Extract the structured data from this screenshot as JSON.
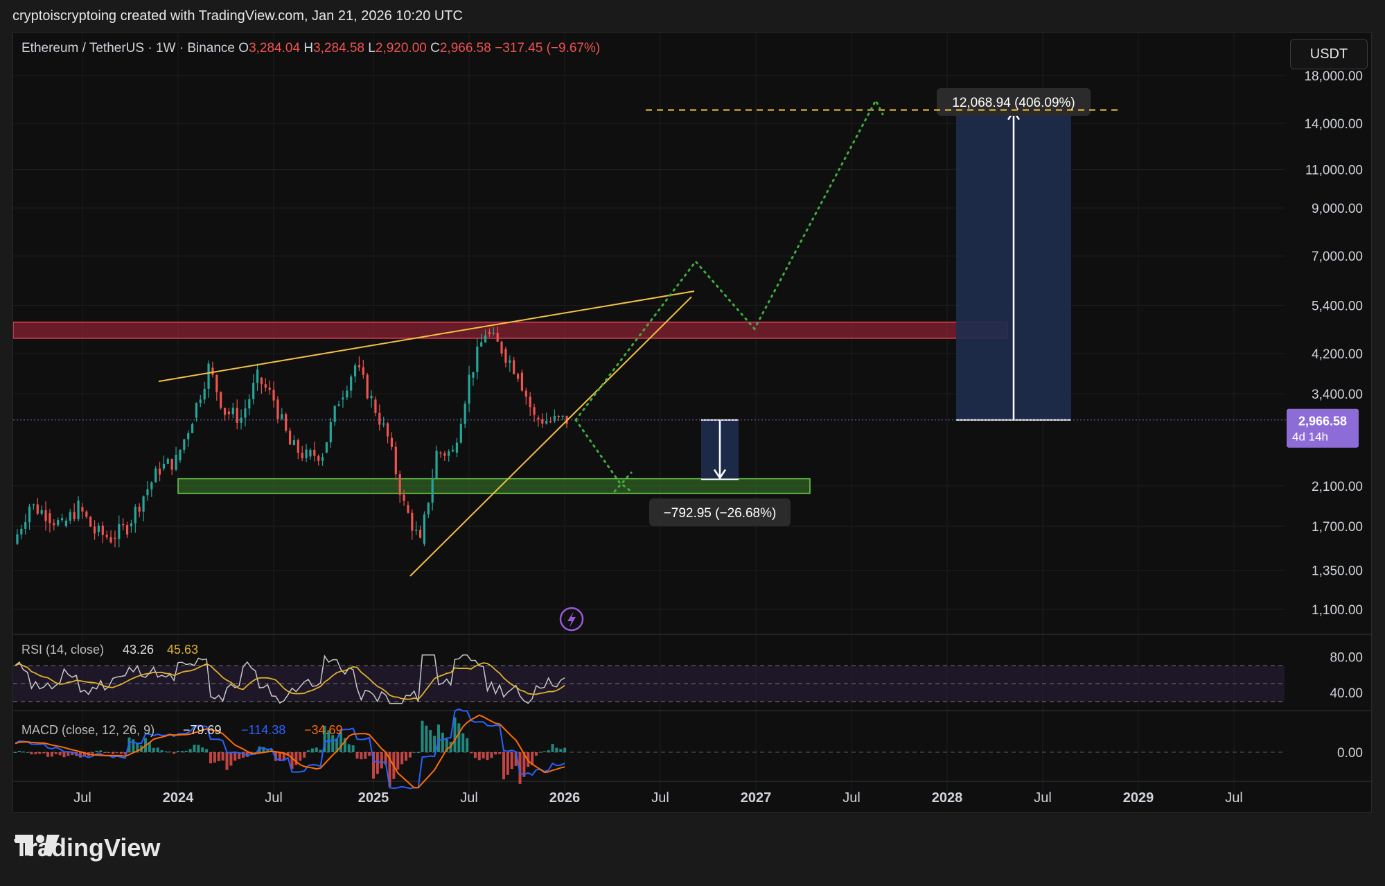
{
  "header": {
    "text": "cryptoiscryptoing created with TradingView.com, Jan 21, 2026 10:20 UTC"
  },
  "symbol_bar": {
    "title": "Ethereum / TetherUS · 1W · Binance",
    "o_label": "O",
    "o": "3,284.04",
    "h_label": "H",
    "h": "3,284.58",
    "l_label": "L",
    "l": "2,920.00",
    "c_label": "C",
    "c": "2,966.58",
    "change": "−317.45 (−9.67%)"
  },
  "currency_button": "USDT",
  "price_tag": {
    "price": "2,966.58",
    "countdown": "4d 14h"
  },
  "measure_up": {
    "label": "12,068.94 (406.09%)"
  },
  "measure_down": {
    "label": "−792.95 (−26.68%)"
  },
  "rsi": {
    "label": "RSI (14, close)",
    "v1": "43.26",
    "v2": "45.63"
  },
  "macd": {
    "label": "MACD (close, 12, 26, 9)",
    "v1": "−79.69",
    "v2": "−114.38",
    "v3": "−34.69"
  },
  "footer": {
    "brand": "TradingView"
  },
  "colors": {
    "up": "#26a69a",
    "down": "#ef5350",
    "orange": "#f5c242",
    "green_proj": "#4caf50",
    "resistance_zone": "#b2283c",
    "support_zone": "#3a7d2a",
    "measure_box": "#1e2d4f",
    "price_tag": "#8e6cd8",
    "rsi_line": "#c8c8c8",
    "rsi_ma": "#e0b12f",
    "macd_line": "#2962ff",
    "signal_line": "#ff6d00"
  },
  "chart_data": {
    "type": "candlestick",
    "scale": "log",
    "timeframe": "1W",
    "price_axis_ticks": [
      18000,
      14000,
      11000,
      9000,
      7000,
      5400,
      4200,
      3400,
      2100,
      1700,
      1350,
      1100
    ],
    "price_axis_labels": [
      "18,000.00",
      "14,000.00",
      "11,000.00",
      "9,000.00",
      "7,000.00",
      "5,400.00",
      "4,200.00",
      "3,400.00",
      "2,100.00",
      "1,700.00",
      "1,350.00",
      "1,100.00"
    ],
    "time_axis_labels": [
      "Jul",
      "2024",
      "Jul",
      "2025",
      "Jul",
      "2026",
      "Jul",
      "2027",
      "Jul",
      "2028",
      "Jul",
      "2029",
      "Jul"
    ],
    "price_path": [
      [
        "2023-03",
        1550
      ],
      [
        "2023-04",
        1900
      ],
      [
        "2023-05",
        1820
      ],
      [
        "2023-06",
        1700
      ],
      [
        "2023-07",
        1880
      ],
      [
        "2023-08",
        1650
      ],
      [
        "2023-09",
        1600
      ],
      [
        "2023-10",
        1700
      ],
      [
        "2023-11",
        2000
      ],
      [
        "2023-12",
        2300
      ],
      [
        "2024-01",
        2400
      ],
      [
        "2024-02",
        3000
      ],
      [
        "2024-03",
        3900
      ],
      [
        "2024-04",
        3100
      ],
      [
        "2024-05",
        3000
      ],
      [
        "2024-06",
        3700
      ],
      [
        "2024-07",
        3300
      ],
      [
        "2024-08",
        2600
      ],
      [
        "2024-09",
        2450
      ],
      [
        "2024-10",
        2500
      ],
      [
        "2024-11",
        3300
      ],
      [
        "2024-12",
        3950
      ],
      [
        "2025-01",
        3300
      ],
      [
        "2025-02",
        2700
      ],
      [
        "2025-03",
        1900
      ],
      [
        "2025-04",
        1550
      ],
      [
        "2025-05",
        2500
      ],
      [
        "2025-06",
        2500
      ],
      [
        "2025-07",
        3700
      ],
      [
        "2025-08",
        4700
      ],
      [
        "2025-09",
        4300
      ],
      [
        "2025-10",
        3800
      ],
      [
        "2025-11",
        3000
      ],
      [
        "2025-12",
        2950
      ],
      [
        "2026-01",
        2966.58
      ]
    ],
    "resistance_zone": [
      4550,
      4950
    ],
    "support_zone": [
      2020,
      2180
    ],
    "projection_points": [
      [
        "2026-01",
        2966.58
      ],
      [
        "2026-04",
        2050
      ],
      [
        "2026-09",
        6900
      ],
      [
        "2026-12",
        4800
      ],
      [
        "2027-09",
        15500
      ]
    ],
    "target_level": 15035.52,
    "rsi": {
      "upper": 70,
      "lower": 30,
      "ticks": [
        80,
        40
      ]
    },
    "macd": {
      "ticks": [
        0
      ]
    }
  }
}
